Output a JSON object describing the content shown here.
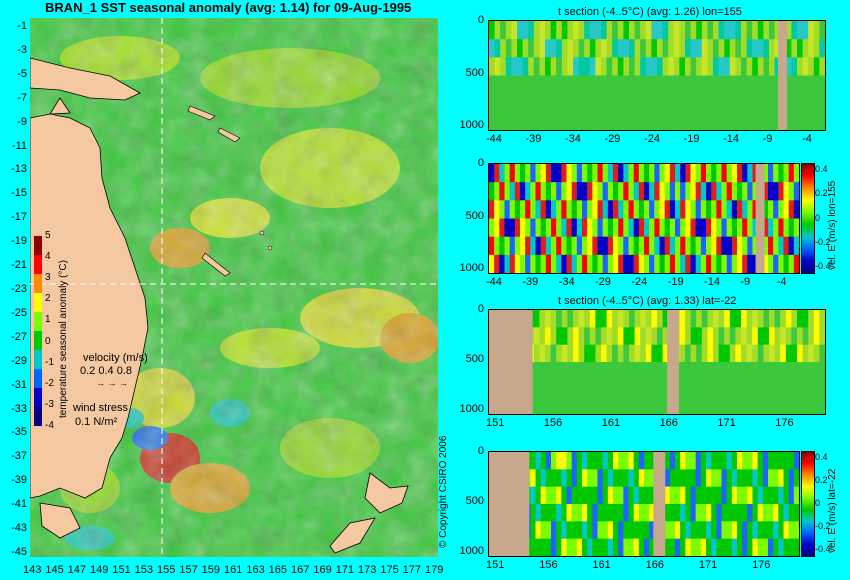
{
  "map": {
    "title": "BRAN_1 SST seasonal anomaly (avg: 1.14) for 09-Aug-1995",
    "lat_labels": [
      "-1",
      "-3",
      "-5",
      "-7",
      "-9",
      "-11",
      "-13",
      "-15",
      "-17",
      "-19",
      "-21",
      "-23",
      "-25",
      "-27",
      "-29",
      "-31",
      "-33",
      "-35",
      "-37",
      "-39",
      "-41",
      "-43",
      "-45"
    ],
    "lon_labels": [
      "143",
      "145",
      "147",
      "149",
      "151",
      "153",
      "155",
      "157",
      "159",
      "161",
      "163",
      "165",
      "167",
      "169",
      "171",
      "173",
      "175",
      "177",
      "179"
    ],
    "colorbar": {
      "label": "temperature seasonal anomaly (°C)",
      "ticks": [
        "5",
        "4",
        "3",
        "2",
        "1",
        "0",
        "-1",
        "-2",
        "-3",
        "-4"
      ],
      "colors": [
        "#8b0000",
        "#ff0000",
        "#ff8c00",
        "#ffff00",
        "#7cfc00",
        "#00c800",
        "#00c8c8",
        "#0064ff",
        "#0000c8",
        "#000080"
      ]
    },
    "velocity_label": "velocity (m/s)",
    "velocity_scale": "0.2 0.4 0.8",
    "wind_label": "wind stress",
    "wind_scale": "0.1 N/m²",
    "copyright": "© Copyright CSIRO 2006",
    "colors": {
      "land": "#f4c8a0",
      "ocean": "#30c030",
      "crosshair": "#ffffff"
    }
  },
  "panels": [
    {
      "title": "t section (-4..5°C) (avg: 1.26) lon=155",
      "y_ticks": [
        "0",
        "500",
        "1000"
      ],
      "x_ticks": [
        "-44",
        "-39",
        "-34",
        "-29",
        "-24",
        "-19",
        "-14",
        "-9",
        "-4"
      ],
      "side_label": ""
    },
    {
      "title": "",
      "y_ticks": [
        "0",
        "500",
        "1000"
      ],
      "x_ticks": [
        "-44",
        "-39",
        "-34",
        "-29",
        "-24",
        "-19",
        "-14",
        "-9",
        "-4"
      ],
      "side_label": "vel. E (m/s) lon=155",
      "cbar_ticks": [
        "0.4",
        "0.2",
        "0",
        "-0.2",
        "-0.4"
      ]
    },
    {
      "title": "t section (-4..5°C) (avg: 1.33) lat=-22",
      "y_ticks": [
        "0",
        "500",
        "1000"
      ],
      "x_ticks": [
        "151",
        "156",
        "161",
        "166",
        "171",
        "176"
      ],
      "side_label": ""
    },
    {
      "title": "",
      "y_ticks": [
        "0",
        "500",
        "1000"
      ],
      "x_ticks": [
        "151",
        "156",
        "161",
        "166",
        "171",
        "176"
      ],
      "side_label": "vel. E (m/s) lat=-22",
      "cbar_ticks": [
        "0.4",
        "0.2",
        "0",
        "-0.2",
        "-0.4"
      ]
    }
  ]
}
